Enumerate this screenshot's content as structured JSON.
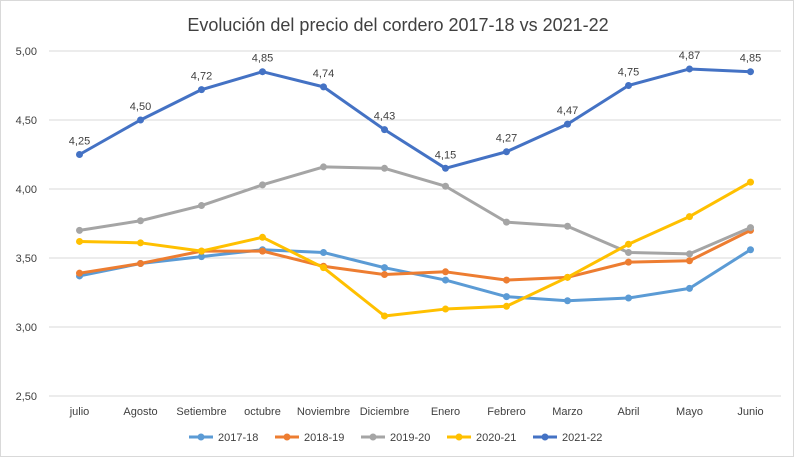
{
  "chart_data": {
    "type": "line",
    "title": "Evolución del precio del cordero 2017-18 vs 2021-22",
    "xlabel": "",
    "ylabel": "",
    "ylim": [
      2.5,
      5.0
    ],
    "yticks": [
      "2,50",
      "3,00",
      "3,50",
      "4,00",
      "4,50",
      "5,00"
    ],
    "ytick_values": [
      2.5,
      3.0,
      3.5,
      4.0,
      4.5,
      5.0
    ],
    "grid": "horizontal",
    "legend": "bottom",
    "categories": [
      "julio",
      "Agosto",
      "Setiembre",
      "octubre",
      "Noviembre",
      "Diciembre",
      "Enero",
      "Febrero",
      "Marzo",
      "Abril",
      "Mayo",
      "Junio"
    ],
    "series": [
      {
        "name": "2017-18",
        "color": "#5b9bd5",
        "values": [
          3.37,
          3.46,
          3.51,
          3.56,
          3.54,
          3.43,
          3.34,
          3.22,
          3.19,
          3.21,
          3.28,
          3.56
        ],
        "labels": []
      },
      {
        "name": "2018-19",
        "color": "#ed7d31",
        "values": [
          3.39,
          3.46,
          3.55,
          3.55,
          3.44,
          3.38,
          3.4,
          3.34,
          3.36,
          3.47,
          3.48,
          3.7
        ],
        "labels": []
      },
      {
        "name": "2019-20",
        "color": "#a5a5a5",
        "values": [
          3.7,
          3.77,
          3.88,
          4.03,
          4.16,
          4.15,
          4.02,
          3.76,
          3.73,
          3.54,
          3.53,
          3.72
        ],
        "labels": []
      },
      {
        "name": "2020-21",
        "color": "#ffc000",
        "values": [
          3.62,
          3.61,
          3.55,
          3.65,
          3.43,
          3.08,
          3.13,
          3.15,
          3.36,
          3.6,
          3.8,
          4.05
        ],
        "labels": []
      },
      {
        "name": "2021-22",
        "color": "#4472c4",
        "values": [
          4.25,
          4.5,
          4.72,
          4.85,
          4.74,
          4.43,
          4.15,
          4.27,
          4.47,
          4.75,
          4.87,
          4.85
        ],
        "labels": [
          "4,25",
          "4,50",
          "4,72",
          "4,85",
          "4,74",
          "4,43",
          "4,15",
          "4,27",
          "4,47",
          "4,75",
          "4,87",
          "4,85"
        ]
      }
    ]
  }
}
